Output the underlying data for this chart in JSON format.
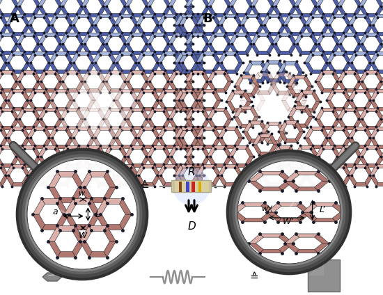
{
  "bg_color": "#ffffff",
  "label_A": "A",
  "label_B": "B",
  "label_R": "R",
  "label_D": "D",
  "label_a": "a",
  "label_w": "w",
  "label_W": "W",
  "label_L": "L",
  "label_Wprime": "W’",
  "label_Lprime": "L’",
  "equiv_symbol": "≙",
  "hex_pink": "#c8968e",
  "hex_pink_light": "#dbb0aa",
  "hex_pink_dark": "#b07870",
  "hex_blue": "#8090c8",
  "hex_blue_light": "#a0b0d8",
  "node_color": "#1a1a2a",
  "mag_dark": "#4a4a4a",
  "mag_mid": "#686868",
  "mag_light": "#989898",
  "resistor_body": "#d8d0a0",
  "spring_color": "#909090",
  "small_hex_color": "#808080",
  "big_square_color": "#888888"
}
